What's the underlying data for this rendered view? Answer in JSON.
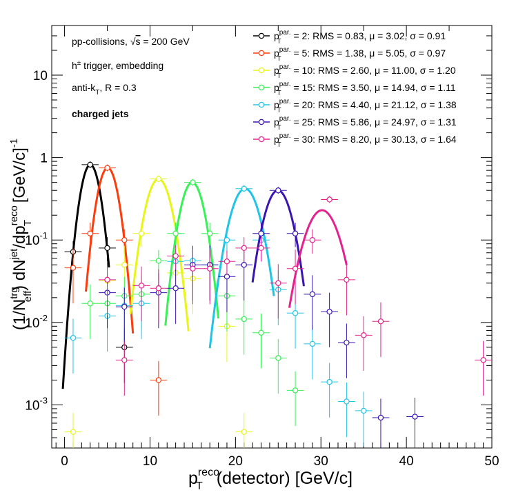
{
  "chart_data": {
    "type": "scatter",
    "title": "",
    "xlabel": "p_T^reco(detector) [GeV/c]",
    "xlabel_main": "p",
    "xlabel_sup": "reco",
    "xlabel_sub": "T",
    "xlabel_rest": "(detector) [GeV/c]",
    "ylabel": "(1/N_eff^trg) dN^jet/dp_T^reco [GeV/c]^-1",
    "xlim": [
      -1.5,
      50
    ],
    "ylim": [
      0.0003,
      40
    ],
    "yscale": "log",
    "x_ticks": [
      "0",
      "10",
      "20",
      "30",
      "40",
      "50"
    ],
    "x_tick_values": [
      0,
      10,
      20,
      30,
      40,
      50
    ],
    "y_ticks": [
      "10^-3",
      "10^-2",
      "10^-1",
      "1",
      "10"
    ],
    "y_tick_values": [
      0.001,
      0.01,
      0.1,
      1,
      10
    ],
    "annotations": [
      "pp-collisions, √s = 200 GeV",
      "h± trigger, embedding",
      "anti-kT, R = 0.3",
      "charged jets"
    ],
    "legend_position": "top-right",
    "series": [
      {
        "name": "p_T^par. = 2: RMS = 0.83, μ = 3.02, σ = 0.91",
        "color": "#000000",
        "points": [
          [
            1,
            0.072
          ],
          [
            3,
            0.82
          ],
          [
            5,
            0.08
          ],
          [
            7,
            0.005
          ]
        ],
        "fit": {
          "A": 0.82,
          "mu": 3.02,
          "sigma": 0.91,
          "range": [
            -0.2,
            5.2
          ]
        }
      },
      {
        "name": "p_T^par. = 5: RMS = 1.38, μ = 5.05, σ = 0.97",
        "color": "#ff3a0b",
        "points": [
          [
            1,
            0.046
          ],
          [
            3,
            0.12
          ],
          [
            5,
            0.75
          ],
          [
            7,
            0.1
          ],
          [
            11,
            0.002
          ]
        ],
        "fit": {
          "A": 0.75,
          "mu": 5.05,
          "sigma": 0.97,
          "range": [
            2.5,
            8.0
          ]
        }
      },
      {
        "name": "p_T^par. = 10: RMS = 2.60, μ = 11.00, σ = 1.20",
        "color": "#e8f517",
        "points": [
          [
            1,
            0.00047
          ],
          [
            5,
            0.032
          ],
          [
            7,
            0.05
          ],
          [
            9,
            0.12
          ],
          [
            11,
            0.55
          ],
          [
            13,
            0.04
          ],
          [
            15,
            0.034
          ],
          [
            19,
            0.009
          ],
          [
            21,
            0.00047
          ]
        ],
        "fit": {
          "A": 0.55,
          "mu": 11.0,
          "sigma": 1.2,
          "range": [
            7.7,
            14.5
          ]
        }
      },
      {
        "name": "p_T^par. = 15: RMS = 3.50, μ = 14.94, σ = 1.11",
        "color": "#36f254",
        "points": [
          [
            3,
            0.017
          ],
          [
            5,
            0.017
          ],
          [
            7,
            0.021
          ],
          [
            9,
            0.022
          ],
          [
            11,
            0.056
          ],
          [
            13,
            0.12
          ],
          [
            15,
            0.5
          ],
          [
            17,
            0.12
          ],
          [
            19,
            0.021
          ],
          [
            21,
            0.011
          ],
          [
            23,
            0.0075
          ],
          [
            25,
            0.0037
          ],
          [
            27,
            0.0015
          ]
        ],
        "fit": {
          "A": 0.5,
          "mu": 14.94,
          "sigma": 1.11,
          "range": [
            11.8,
            18.0
          ]
        }
      },
      {
        "name": "p_T^par. = 20: RMS = 4.40, μ = 21.12, σ = 1.38",
        "color": "#1ec5e6",
        "points": [
          [
            1,
            0.0065
          ],
          [
            5,
            0.012
          ],
          [
            7,
            0.016
          ],
          [
            9,
            0.017
          ],
          [
            13,
            0.055
          ],
          [
            15,
            0.056
          ],
          [
            17,
            0.05
          ],
          [
            19,
            0.1
          ],
          [
            21,
            0.42
          ],
          [
            23,
            0.1
          ],
          [
            25,
            0.025
          ],
          [
            27,
            0.013
          ],
          [
            29,
            0.0055
          ],
          [
            31,
            0.0019
          ],
          [
            33,
            0.0011
          ],
          [
            35,
            0.00085
          ]
        ],
        "fit": {
          "A": 0.42,
          "mu": 21.12,
          "sigma": 1.38,
          "range": [
            17.0,
            24.5
          ]
        }
      },
      {
        "name": "p_T^par. = 25: RMS = 5.86, μ = 24.97, σ = 1.31",
        "color": "#3a14b3",
        "points": [
          [
            5,
            0.023
          ],
          [
            7,
            0.0155
          ],
          [
            11,
            0.023
          ],
          [
            13,
            0.026
          ],
          [
            15,
            0.05
          ],
          [
            17,
            0.05
          ],
          [
            19,
            0.036
          ],
          [
            21,
            0.05
          ],
          [
            23,
            0.12
          ],
          [
            25,
            0.4
          ],
          [
            27,
            0.12
          ],
          [
            29,
            0.022
          ],
          [
            31,
            0.0135
          ],
          [
            33,
            0.0057
          ],
          [
            37,
            0.0007
          ],
          [
            41,
            0.00072
          ]
        ],
        "fit": {
          "A": 0.4,
          "mu": 24.97,
          "sigma": 1.31,
          "range": [
            22.0,
            28.0
          ]
        }
      },
      {
        "name": "p_T^par. = 30: RMS = 8.20, μ = 30.13, σ = 1.64",
        "color": "#e5218e",
        "points": [
          [
            5,
            0.033
          ],
          [
            7,
            0.0035
          ],
          [
            9,
            0.028
          ],
          [
            11,
            0.026
          ],
          [
            13,
            0.064
          ],
          [
            15,
            0.045
          ],
          [
            17,
            0.045
          ],
          [
            19,
            0.055
          ],
          [
            21,
            0.08
          ],
          [
            23,
            0.08
          ],
          [
            25,
            0.03
          ],
          [
            27,
            0.045
          ],
          [
            29,
            0.1
          ],
          [
            31,
            0.31
          ],
          [
            33,
            0.033
          ],
          [
            35,
            0.007
          ],
          [
            37,
            0.0103
          ],
          [
            49,
            0.0035
          ]
        ],
        "fit": {
          "A": 0.23,
          "mu": 30.13,
          "sigma": 1.64,
          "range": [
            26.3,
            33.0
          ]
        }
      }
    ]
  }
}
